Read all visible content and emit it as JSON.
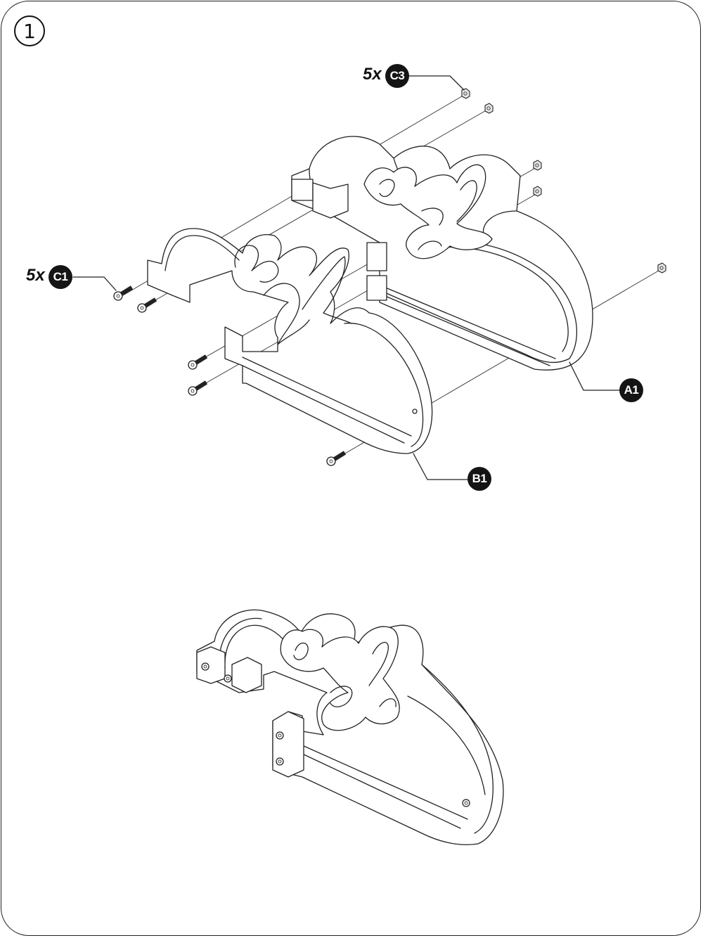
{
  "step": {
    "number": "1"
  },
  "callouts": {
    "c3": {
      "qty": "5x",
      "label": "C3"
    },
    "c1": {
      "qty": "5x",
      "label": "C1"
    },
    "a1": {
      "label": "A1"
    },
    "b1": {
      "label": "B1"
    }
  },
  "colors": {
    "ink": "#141414",
    "paper": "#ffffff",
    "shade": "#e6e6e6"
  },
  "icons": [
    "nut-icon",
    "screw-icon",
    "sign-letters-icon"
  ]
}
